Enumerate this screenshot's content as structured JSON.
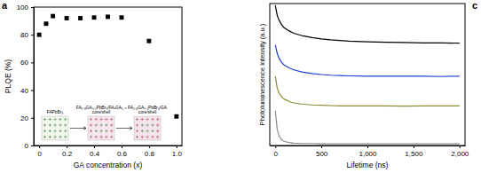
{
  "chart_data": [
    {
      "type": "scatter",
      "title": "a",
      "x": [
        0,
        0.05,
        0.1,
        0.2,
        0.3,
        0.4,
        0.5,
        0.6,
        0.8,
        1.0
      ],
      "values": [
        80,
        88,
        93.5,
        92,
        92,
        92.5,
        93,
        92.5,
        75.5,
        21
      ],
      "color": "#000000",
      "marker": "square",
      "xlabel": "GA concentration (x)",
      "ylabel": "PLQE (%)",
      "xlim": [
        -0.04,
        1.04
      ],
      "ylim": [
        0,
        100
      ],
      "xticks": [
        0,
        0.2,
        0.4,
        0.6,
        0.8,
        {
          "value": 1,
          "label": "1.0"
        }
      ],
      "yticks": [
        0,
        20,
        40,
        60,
        80,
        100
      ],
      "annotations": [
        {
          "lines": [
            "FAPbBr₃"
          ]
        },
        {
          "lines": [
            "FA₀.₉GA₀.₁PbBr₃/FAₓGA₁₋ₓ",
            "core/shell"
          ]
        },
        {
          "lines": [
            "FA₀.₉GA₀.₁PbBr₃/GA",
            "core/shell"
          ]
        }
      ]
    },
    {
      "type": "line",
      "title": "c",
      "x": [
        0,
        20,
        40,
        60,
        80,
        100,
        150,
        200,
        300,
        400,
        500,
        600,
        700,
        800,
        1000,
        1200,
        1400,
        1600,
        1800,
        2000
      ],
      "series": [
        {
          "color": "#000000",
          "values": [
            4.25,
            3.95,
            3.8,
            3.7,
            3.62,
            3.56,
            3.47,
            3.4,
            3.32,
            3.27,
            3.23,
            3.2,
            3.18,
            3.16,
            3.14,
            3.13,
            3.12,
            3.11,
            3.11,
            3.1
          ]
        },
        {
          "color": "#1c3fd6",
          "values": [
            3.05,
            2.8,
            2.65,
            2.55,
            2.48,
            2.43,
            2.35,
            2.29,
            2.22,
            2.18,
            2.15,
            2.13,
            2.12,
            2.11,
            2.1,
            2.1,
            2.1,
            2.1,
            2.09,
            2.1
          ]
        },
        {
          "color": "#8c8a2e",
          "values": [
            2.1,
            1.75,
            1.6,
            1.5,
            1.44,
            1.4,
            1.33,
            1.29,
            1.25,
            1.23,
            1.22,
            1.21,
            1.2,
            1.2,
            1.2,
            1.2,
            1.19,
            1.2,
            1.2,
            1.2
          ]
        },
        {
          "color": "#8a8a8a",
          "values": [
            1.05,
            0.5,
            0.3,
            0.2,
            0.15,
            0.12,
            0.09,
            0.07,
            0.06,
            0.06,
            0.05,
            0.05,
            0.05,
            0.05,
            0.05,
            0.05,
            0.05,
            0.05,
            0.05,
            0.05
          ]
        }
      ],
      "xlabel": "Lifetime (ns)",
      "ylabel": "Photoluminescence intensity (a.u.)",
      "xlim": [
        -60,
        2060
      ],
      "ylim": [
        0,
        4.3
      ],
      "xticks": [
        0,
        500,
        {
          "value": 1000,
          "label": "1,000"
        },
        {
          "value": 1500,
          "label": "1,500"
        },
        {
          "value": 2000,
          "label": "2,000"
        }
      ],
      "tick_labels": "x"
    }
  ]
}
